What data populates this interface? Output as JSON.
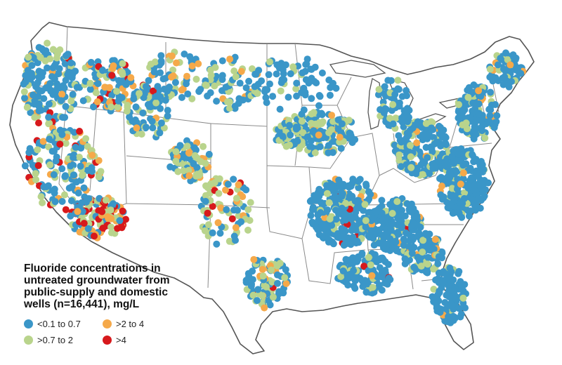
{
  "legend": {
    "title": "Fluoride concentrations in\nuntreated groundwater from\npublic-supply and domestic\nwells (n=16,441), mg/L",
    "items": [
      {
        "label": "<0.1 to 0.7",
        "color": "#3a96c8",
        "class": "low"
      },
      {
        "label": ">2 to 4",
        "color": "#f5a94a",
        "class": "high"
      },
      {
        "label": ">0.7 to 2",
        "color": "#b9d48c",
        "class": "mid"
      },
      {
        "label": ">4",
        "color": "#d7191c",
        "class": "very-high"
      }
    ]
  },
  "map": {
    "region": "conterminous-united-states",
    "colors": {
      "low": "#3a96c8",
      "mid": "#b9d48c",
      "high": "#f5a94a",
      "very-high": "#d7191c"
    }
  }
}
